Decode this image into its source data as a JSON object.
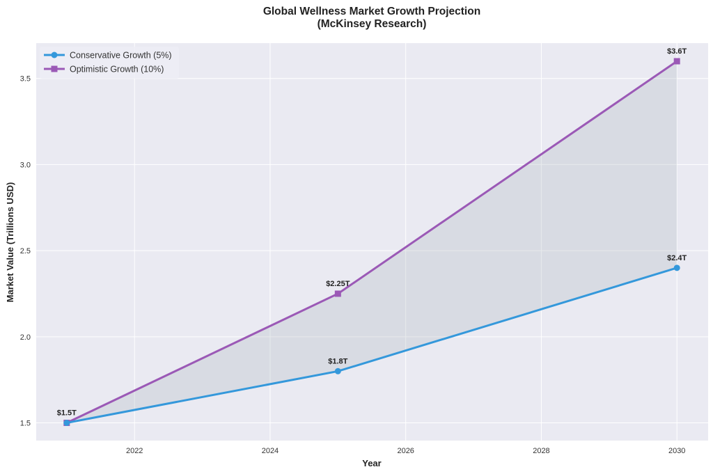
{
  "chart_data": {
    "type": "line",
    "title": "Global Wellness Market Growth Projection",
    "subtitle": "(McKinsey Research)",
    "xlabel": "Year",
    "ylabel": "Market Value (Trillions USD)",
    "xlim": [
      2020.55,
      2030.46
    ],
    "ylim": [
      1.397,
      3.705
    ],
    "xticks": [
      2022,
      2024,
      2026,
      2028,
      2030
    ],
    "yticks": [
      1.5,
      2.0,
      2.5,
      3.0,
      3.5
    ],
    "ytick_labels": [
      "1.5",
      "2.0",
      "2.5",
      "3.0",
      "3.5"
    ],
    "grid": true,
    "legend_position": "top-left",
    "x": [
      2021,
      2025,
      2030
    ],
    "series": [
      {
        "name": "Conservative Growth (5%)",
        "values": [
          1.5,
          1.8,
          2.4
        ],
        "color": "#3498db",
        "marker": "circle",
        "labels": [
          "$1.5T",
          "$1.8T",
          "$2.4T"
        ]
      },
      {
        "name": "Optimistic Growth (10%)",
        "values": [
          1.5,
          2.25,
          3.6
        ],
        "color": "#9b59b6",
        "marker": "square",
        "labels": [
          "",
          "$2.25T",
          "$3.6T"
        ]
      }
    ],
    "fill_between": true
  }
}
